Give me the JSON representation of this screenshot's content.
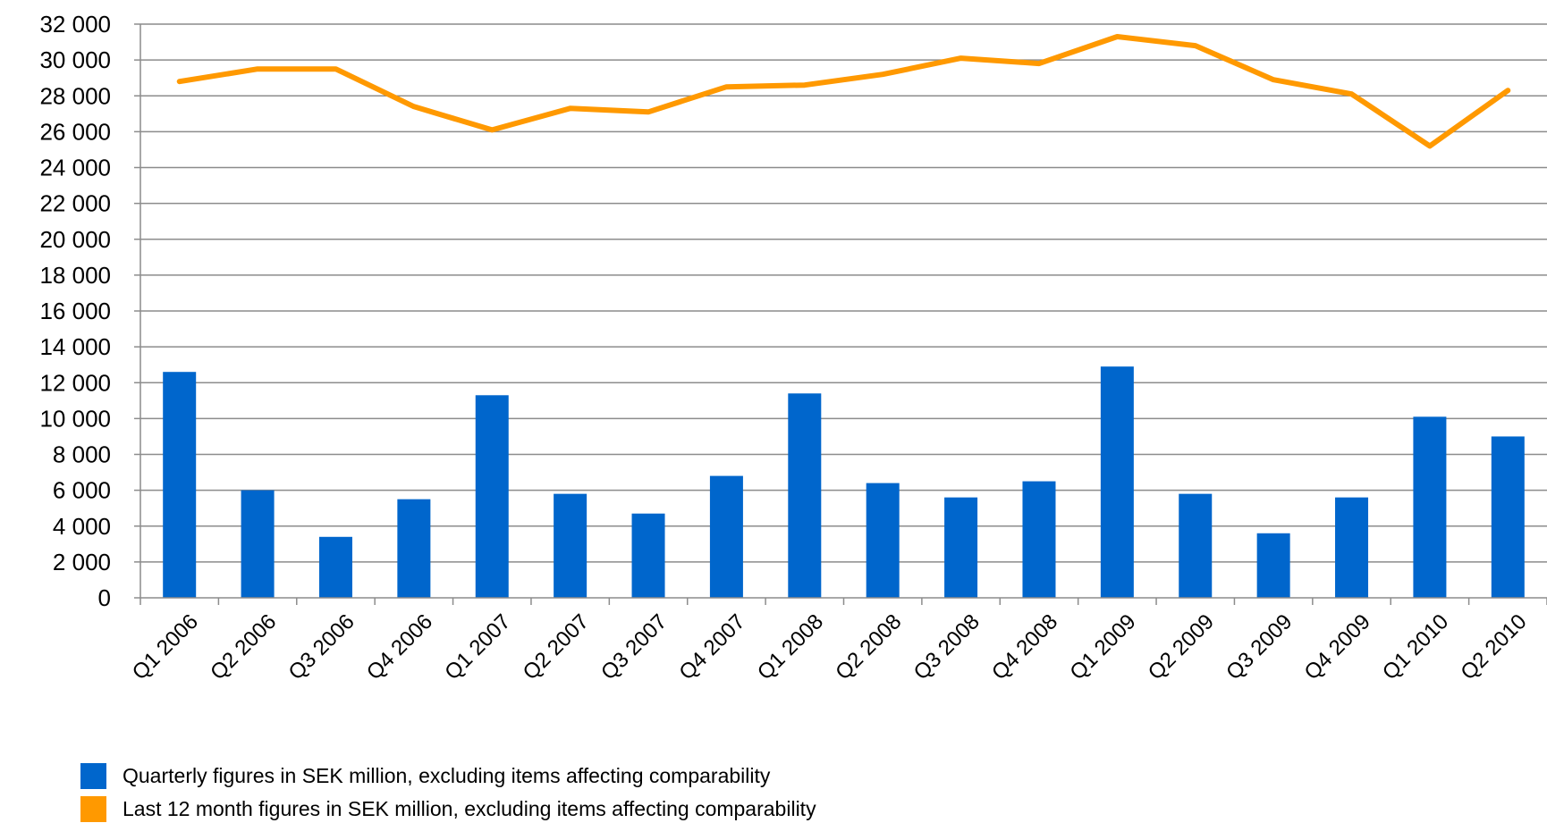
{
  "chart_data": {
    "type": "bar",
    "categories": [
      "Q1 2006",
      "Q2 2006",
      "Q3 2006",
      "Q4 2006",
      "Q1 2007",
      "Q2 2007",
      "Q3 2007",
      "Q4 2007",
      "Q1 2008",
      "Q2 2008",
      "Q3 2008",
      "Q4 2008",
      "Q1 2009",
      "Q2 2009",
      "Q3 2009",
      "Q4 2009",
      "Q1 2010",
      "Q2 2010"
    ],
    "series": [
      {
        "name": "Quarterly figures in SEK million, excluding items affecting comparability",
        "type": "bar",
        "color": "#0066CC",
        "values": [
          12600,
          6000,
          3400,
          5500,
          11300,
          5800,
          4700,
          6800,
          11400,
          6400,
          5600,
          6500,
          12900,
          5800,
          3600,
          5600,
          10100,
          9000
        ]
      },
      {
        "name": "Last 12 month figures in SEK million, excluding items affecting comparability",
        "type": "line",
        "color": "#FF9900",
        "values": [
          28800,
          29500,
          29500,
          27400,
          26100,
          27300,
          27100,
          28500,
          28600,
          29200,
          30100,
          29800,
          31300,
          30800,
          28900,
          28100,
          25200,
          28300
        ]
      }
    ],
    "ylim": [
      0,
      32000
    ],
    "yticks": [
      0,
      2000,
      4000,
      6000,
      8000,
      10000,
      12000,
      14000,
      16000,
      18000,
      20000,
      22000,
      24000,
      26000,
      28000,
      30000,
      32000
    ],
    "ytick_labels": [
      "0",
      "2 000",
      "4 000",
      "6 000",
      "8 000",
      "10 000",
      "12 000",
      "14 000",
      "16 000",
      "18 000",
      "20 000",
      "22 000",
      "24 000",
      "26 000",
      "28 000",
      "30 000",
      "32 000"
    ],
    "grid": true,
    "legend_position": "bottom",
    "title": "",
    "xlabel": "",
    "ylabel": ""
  }
}
